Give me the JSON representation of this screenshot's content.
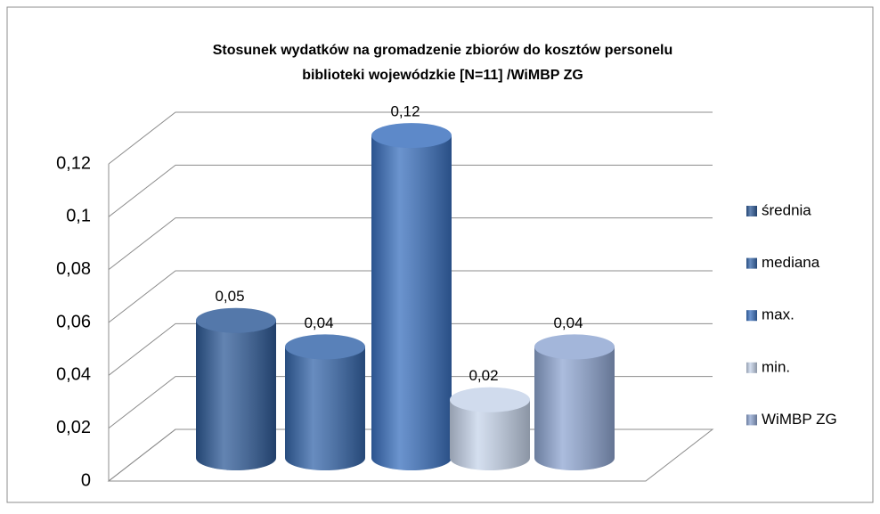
{
  "chart_data": {
    "type": "bar3d",
    "title": [
      "Stosunek wydatków na gromadzenie  zbiorów do kosztów personelu",
      "biblioteki wojewódzkie  [N=11] /WiMBP ZG"
    ],
    "series": [
      {
        "name": "średnia",
        "color": "#2f5b98",
        "values": [
          0.052
        ],
        "value_labels": [
          "0,05"
        ]
      },
      {
        "name": "mediana",
        "color": "#3566aa",
        "values": [
          0.042
        ],
        "value_labels": [
          "0,04"
        ]
      },
      {
        "name": "max.",
        "color": "#3a70be",
        "values": [
          0.122
        ],
        "value_labels": [
          "0,12"
        ]
      },
      {
        "name": "min.",
        "color": "#c6d4ea",
        "values": [
          0.022
        ],
        "value_labels": [
          "0,02"
        ]
      },
      {
        "name": "WiMBP ZG",
        "color": "#8fa6d2",
        "values": [
          0.042
        ],
        "value_labels": [
          "0,04"
        ]
      }
    ],
    "ylim": [
      0,
      0.12
    ],
    "yticks": [
      0,
      {
        "value": 0.02,
        "label": "0,02"
      },
      {
        "value": 0.04,
        "label": "0,04"
      },
      {
        "value": 0.06,
        "label": "0,06"
      },
      {
        "value": 0.08,
        "label": "0,08"
      },
      {
        "value": 0.1,
        "label": "0,1"
      },
      {
        "value": 0.12,
        "label": "0,12"
      }
    ],
    "grid": true
  }
}
